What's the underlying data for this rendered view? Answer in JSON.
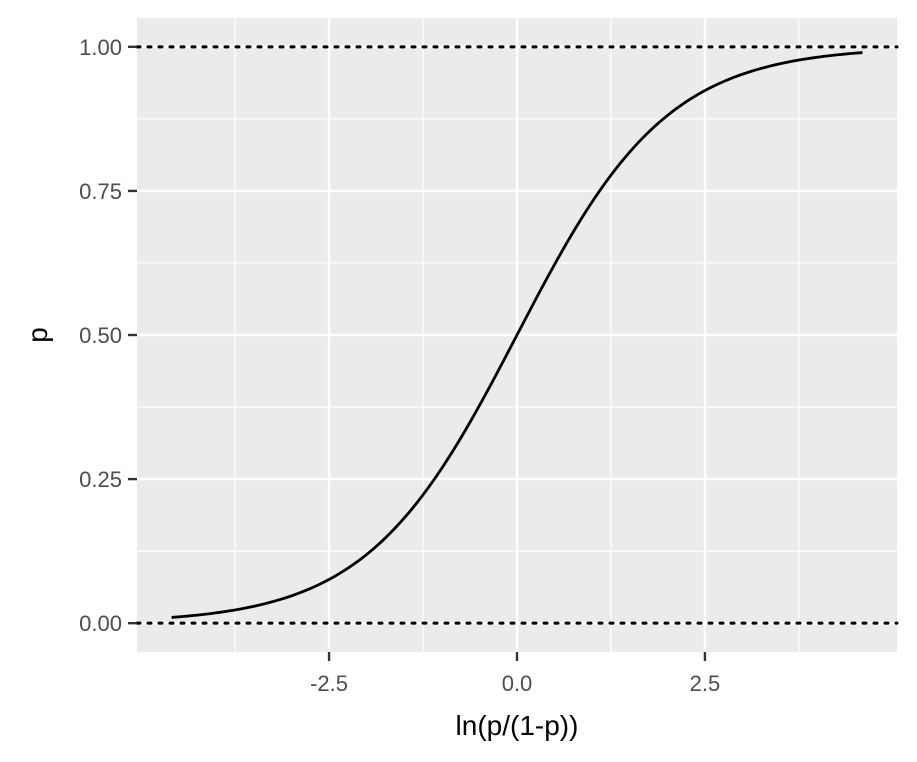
{
  "chart_data": {
    "type": "line",
    "title": "",
    "xlabel": "ln(p/(1-p))",
    "ylabel": "p",
    "xlim": [
      -4.595,
      4.595
    ],
    "ylim": [
      0,
      1
    ],
    "x_ticks": [
      -2.5,
      0,
      2.5
    ],
    "x_tick_labels": [
      "-2.5",
      "0.0",
      "2.5"
    ],
    "y_ticks": [
      0,
      0.25,
      0.5,
      0.75,
      1
    ],
    "y_tick_labels": [
      "0.00",
      "0.25",
      "0.50",
      "0.75",
      "1.00"
    ],
    "grid": true,
    "legend": "none",
    "series": [
      {
        "x": [
          -4.595,
          -4.0,
          -3.5,
          -3.0,
          -2.5,
          -2.0,
          -1.5,
          -1.0,
          -0.5,
          0.0,
          0.5,
          1.0,
          1.5,
          2.0,
          2.5,
          3.0,
          3.5,
          4.0,
          4.595
        ],
        "y": [
          0.01,
          0.018,
          0.029,
          0.047,
          0.076,
          0.119,
          0.182,
          0.269,
          0.378,
          0.5,
          0.622,
          0.731,
          0.818,
          0.881,
          0.924,
          0.953,
          0.971,
          0.982,
          0.99
        ]
      }
    ],
    "reference_lines": [
      {
        "y": 0,
        "style": "dotted"
      },
      {
        "y": 1,
        "style": "dotted"
      }
    ],
    "colors": {
      "panel": "#ebebeb",
      "grid": "#ffffff",
      "line": "#000000",
      "ticks": "#333333"
    }
  }
}
